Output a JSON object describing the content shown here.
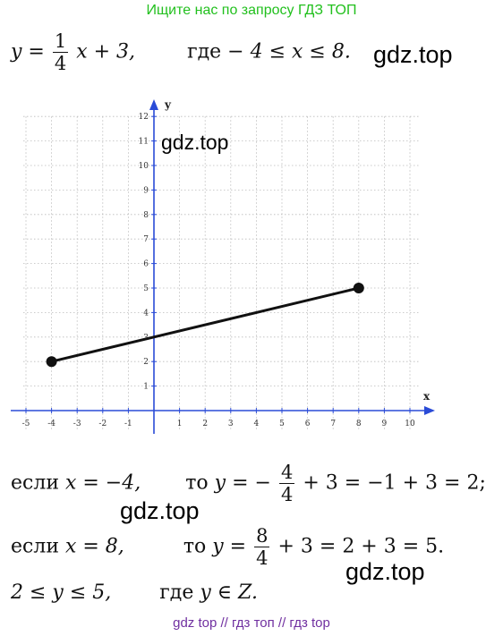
{
  "banner": "Ищите нас по запросу ГДЗ ТОП",
  "watermark": "gdz.top",
  "equation": {
    "lhs": "y =",
    "frac_num": "1",
    "frac_den": "4",
    "rest": "x + 3,",
    "where": "где",
    "condition": "− 4 ≤ x ≤ 8."
  },
  "calc1": {
    "if": "если",
    "cond": "x = −4,",
    "then": "то",
    "lhs": "y = −",
    "frac_num": "4",
    "frac_den": "4",
    "rest": "+ 3 = −1 + 3 = 2;"
  },
  "calc2": {
    "if": "если",
    "cond": "x = 8,",
    "then": "то",
    "lhs": "y =",
    "frac_num": "8",
    "frac_den": "4",
    "rest": "+ 3 = 2 + 3 = 5."
  },
  "result": {
    "range": "2 ≤ y ≤ 5,",
    "where": "где",
    "set": "y ∈ Z."
  },
  "footer": "gdz top  //  гдз топ  //  гдз top",
  "chart_data": {
    "type": "line",
    "xlabel": "x",
    "ylabel": "y",
    "xlim": [
      -5,
      10
    ],
    "ylim": [
      0,
      12
    ],
    "x_ticks": [
      "-5",
      "-4",
      "-3",
      "-2",
      "-1",
      "1",
      "2",
      "3",
      "4",
      "5",
      "6",
      "7",
      "8",
      "9",
      "10"
    ],
    "y_ticks": [
      "1",
      "2",
      "3",
      "4",
      "5",
      "6",
      "7",
      "8",
      "9",
      "10",
      "11",
      "12"
    ],
    "grid": true,
    "series": [
      {
        "x": [
          -4,
          8
        ],
        "y": [
          2,
          5
        ],
        "color": "#111111"
      }
    ],
    "axis_color": "#2a4bd7"
  }
}
